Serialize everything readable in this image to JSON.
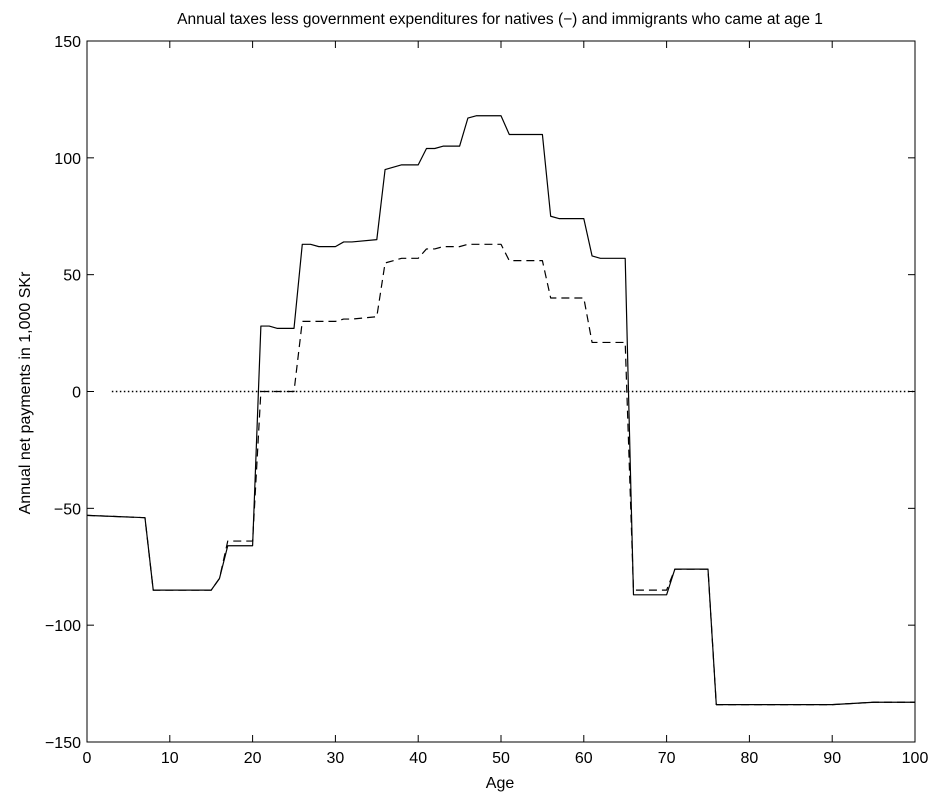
{
  "chart_data": {
    "type": "line",
    "title": "Annual taxes less government expenditures for natives (−) and immigrants who came at age 1",
    "xlabel": "Age",
    "ylabel": "Annual net payments in 1,000 SKr",
    "xlim": [
      0,
      100
    ],
    "ylim": [
      -150,
      150
    ],
    "xticks": [
      0,
      10,
      20,
      30,
      40,
      50,
      60,
      70,
      80,
      90,
      100
    ],
    "yticks": [
      -150,
      -100,
      -50,
      0,
      50,
      100,
      150
    ],
    "xtick_labels": [
      "0",
      "10",
      "20",
      "30",
      "40",
      "50",
      "60",
      "70",
      "80",
      "90",
      "100"
    ],
    "ytick_labels": [
      "−150",
      "−100",
      "−50",
      "0",
      "50",
      "100",
      "150"
    ],
    "grid": false,
    "series": [
      {
        "name": "natives",
        "style": "solid",
        "color": "#000000",
        "x": [
          0,
          7,
          8,
          15,
          16,
          17,
          18,
          20,
          21,
          22,
          23,
          25,
          26,
          27,
          28,
          30,
          31,
          32,
          35,
          36,
          37,
          38,
          40,
          41,
          42,
          43,
          45,
          46,
          47,
          50,
          51,
          52,
          55,
          56,
          57,
          60,
          61,
          62,
          65,
          66,
          67,
          70,
          71,
          72,
          75,
          76,
          77,
          80,
          85,
          90,
          95,
          100
        ],
        "y": [
          -53,
          -54,
          -85,
          -85,
          -80,
          -66,
          -66,
          -66,
          28,
          28,
          27,
          27,
          63,
          63,
          62,
          62,
          64,
          64,
          65,
          95,
          96,
          97,
          97,
          104,
          104,
          105,
          105,
          117,
          118,
          118,
          110,
          110,
          110,
          75,
          74,
          74,
          58,
          57,
          57,
          -87,
          -87,
          -87,
          -76,
          -76,
          -76,
          -134,
          -134,
          -134,
          -134,
          -134,
          -133,
          -133
        ]
      },
      {
        "name": "immigrants who came at age 1",
        "style": "dashed",
        "color": "#000000",
        "x": [
          0,
          7,
          8,
          15,
          16,
          17,
          18,
          20,
          21,
          22,
          23,
          25,
          26,
          27,
          28,
          30,
          31,
          32,
          35,
          36,
          37,
          38,
          40,
          41,
          42,
          43,
          45,
          46,
          47,
          50,
          51,
          52,
          55,
          56,
          57,
          60,
          61,
          62,
          65,
          66,
          67,
          70,
          71,
          72,
          75,
          76,
          77,
          80,
          85,
          90,
          95,
          100
        ],
        "y": [
          -53,
          -54,
          -85,
          -85,
          -80,
          -64,
          -64,
          -64,
          0,
          0,
          0,
          0,
          30,
          30,
          30,
          30,
          31,
          31,
          32,
          55,
          56,
          57,
          57,
          61,
          61,
          62,
          62,
          63,
          63,
          63,
          56,
          56,
          56,
          40,
          40,
          40,
          21,
          21,
          21,
          -85,
          -85,
          -85,
          -76,
          -76,
          -76,
          -134,
          -134,
          -134,
          -134,
          -134,
          -133,
          -133
        ]
      },
      {
        "name": "zero reference",
        "style": "dotted",
        "color": "#000000",
        "x": [
          3,
          100
        ],
        "y": [
          0,
          0
        ]
      }
    ]
  }
}
